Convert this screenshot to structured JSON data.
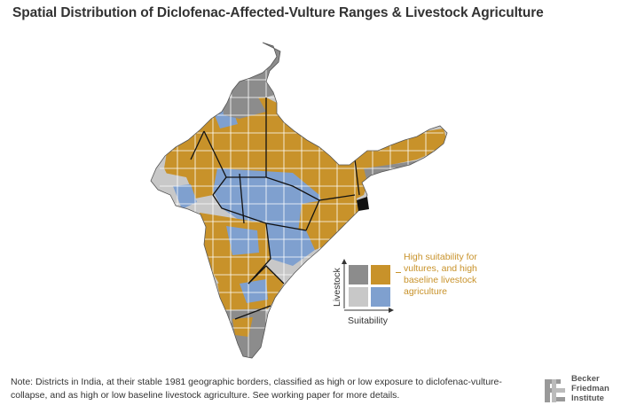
{
  "title": "Spatial Distribution of Diclofenac-Affected-Vulture Ranges & Livestock Agriculture",
  "legend": {
    "highlight_label": "High suitability for vultures, and high baseline livestock agriculture",
    "y_axis": "Livestock",
    "x_axis": "Suitability",
    "cells": [
      {
        "row": "high-livestock",
        "col": "low-suitability",
        "color": "#8c8c8c"
      },
      {
        "row": "high-livestock",
        "col": "high-suitability",
        "color": "#c8922a"
      },
      {
        "row": "low-livestock",
        "col": "low-suitability",
        "color": "#c8c8c8"
      },
      {
        "row": "low-livestock",
        "col": "high-suitability",
        "color": "#7fa0cf"
      }
    ]
  },
  "colors": {
    "high_both": "#c8922a",
    "high_suit_low_livestock": "#7fa0cf",
    "low_suit_high_livestock": "#8c8c8c",
    "low_both": "#c8c8c8",
    "state_border": "#111111",
    "district_border": "#ffffff"
  },
  "note": "Note: Districts in India, at their stable 1981 geographic borders, classified as high or low exposure to diclofenac-vulture-collapse, and as high or low baseline livestock agriculture. See working paper for more details.",
  "brand": {
    "name_line1": "Becker",
    "name_line2": "Friedman",
    "name_line3": "Institute",
    "icon": "bfi-logo-icon"
  }
}
